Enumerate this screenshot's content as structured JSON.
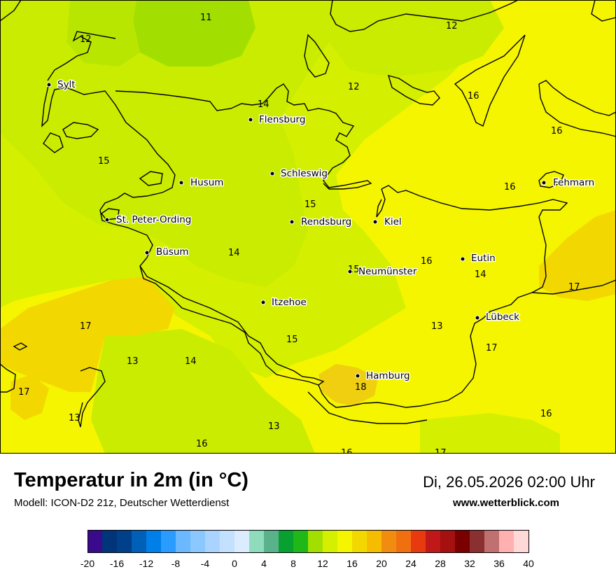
{
  "title": "Temperatur in 2m (in °C)",
  "model": "Modell: ICON-D2 21z, Deutscher Wetterdienst",
  "datetime": "Di, 26.05.2026 02:00 Uhr",
  "website": "www.wetterblick.com",
  "palette": {
    "c11": "#a2df00",
    "c13": "#c9ec00",
    "c15": "#d4f000",
    "c16": "#f5f500",
    "c17": "#f2d800",
    "c18": "#f0cf10"
  },
  "cities": [
    {
      "name": "Sylt"
    },
    {
      "name": "Flensburg"
    },
    {
      "name": "Schleswig"
    },
    {
      "name": "Husum"
    },
    {
      "name": "Fehmarn"
    },
    {
      "name": "St. Peter-Ording"
    },
    {
      "name": "Rendsburg"
    },
    {
      "name": "Kiel"
    },
    {
      "name": "Büsum"
    },
    {
      "name": "Eutin"
    },
    {
      "name": "Neumünster"
    },
    {
      "name": "Itzehoe"
    },
    {
      "name": "Lübeck"
    },
    {
      "name": "Hamburg"
    }
  ],
  "value_labels": [
    "11",
    "12",
    "12",
    "12",
    "16",
    "16",
    "14",
    "15",
    "16",
    "15",
    "14",
    "15",
    "16",
    "14",
    "17",
    "17",
    "13",
    "15",
    "17",
    "13",
    "14",
    "18",
    "17",
    "13",
    "16",
    "13",
    "16",
    "16",
    "17"
  ],
  "legend": {
    "ticks": [
      "-20",
      "-16",
      "-12",
      "-8",
      "-4",
      "0",
      "4",
      "8",
      "12",
      "16",
      "20",
      "24",
      "28",
      "32",
      "36",
      "40"
    ],
    "colors": [
      "#3a0a8c",
      "#00357a",
      "#003f8a",
      "#0060b8",
      "#007fe8",
      "#2a9cff",
      "#6cb8ff",
      "#8ac8ff",
      "#aad4ff",
      "#c4e0ff",
      "#dcecff",
      "#8edcbc",
      "#5ab28a",
      "#08a030",
      "#20b818",
      "#a2df00",
      "#d4f000",
      "#f5f500",
      "#f2d800",
      "#f5bc00",
      "#f28c10",
      "#f07010",
      "#e83a10",
      "#c01818",
      "#a51010",
      "#7a0000",
      "#8a3030",
      "#c07070",
      "#ffb0b0",
      "#ffd8d8"
    ]
  }
}
